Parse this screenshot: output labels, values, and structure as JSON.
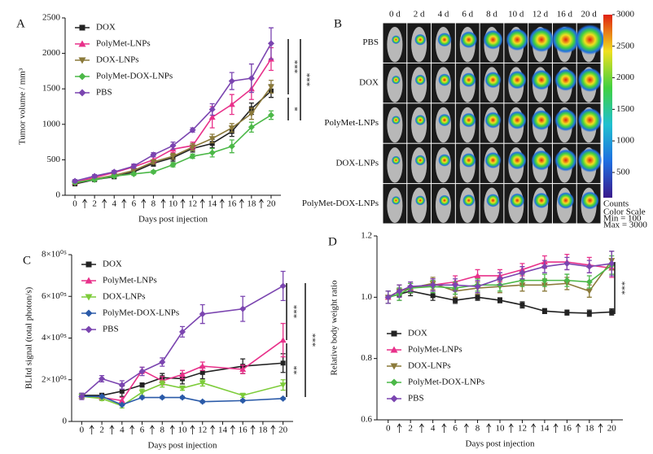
{
  "chart_data": [
    {
      "type": "line",
      "panel": "A",
      "x_label": "Days post injection",
      "y_label": "Tumor volume / mm³",
      "x": [
        0,
        2,
        4,
        6,
        8,
        10,
        12,
        14,
        16,
        18,
        20
      ],
      "xlim": [
        -1,
        21
      ],
      "xticks": [
        0,
        2,
        4,
        6,
        8,
        10,
        12,
        14,
        16,
        18,
        20
      ],
      "ylim": [
        0,
        2500
      ],
      "yticks": [
        0,
        500,
        1000,
        1500,
        2000,
        2500
      ],
      "legend": "upper left",
      "series": [
        {
          "name": "DOX",
          "color": "#222222",
          "marker": "square",
          "values": [
            160,
            220,
            260,
            330,
            450,
            530,
            660,
            730,
            900,
            1220,
            1470
          ],
          "errors": [
            15,
            20,
            20,
            30,
            40,
            50,
            50,
            60,
            70,
            80,
            90
          ]
        },
        {
          "name": "PolyMet-LNPs",
          "color": "#e8318a",
          "marker": "triangle",
          "values": [
            180,
            250,
            320,
            400,
            500,
            650,
            700,
            1100,
            1280,
            1500,
            1920
          ],
          "errors": [
            20,
            20,
            25,
            30,
            40,
            50,
            50,
            150,
            140,
            150,
            160
          ]
        },
        {
          "name": "DOX-LNPs",
          "color": "#8b7a3a",
          "marker": "triangle-down",
          "values": [
            170,
            230,
            280,
            350,
            470,
            550,
            680,
            800,
            950,
            1150,
            1530
          ],
          "errors": [
            15,
            20,
            20,
            30,
            30,
            40,
            50,
            60,
            60,
            80,
            90
          ]
        },
        {
          "name": "PolyMet-DOX-LNPs",
          "color": "#4cb848",
          "marker": "diamond",
          "values": [
            180,
            220,
            270,
            300,
            330,
            430,
            550,
            600,
            690,
            960,
            1130
          ],
          "errors": [
            15,
            15,
            20,
            20,
            20,
            30,
            30,
            60,
            90,
            70,
            60
          ]
        },
        {
          "name": "PBS",
          "color": "#7b45b0",
          "marker": "diamond",
          "values": [
            200,
            270,
            330,
            410,
            570,
            700,
            920,
            1210,
            1610,
            1650,
            2140
          ],
          "errors": [
            20,
            20,
            20,
            30,
            30,
            50,
            30,
            80,
            120,
            200,
            220
          ]
        }
      ],
      "annotations": [
        "***",
        "*",
        "***"
      ]
    },
    {
      "type": "image-grid",
      "panel": "B",
      "columns": [
        "0 d",
        "2 d",
        "4 d",
        "6 d",
        "8 d",
        "10 d",
        "12 d",
        "16 d",
        "20 d"
      ],
      "rows": [
        "PBS",
        "DOX",
        "PolyMet-LNPs",
        "DOX-LNPs",
        "PolyMet-DOX-LNPs"
      ],
      "clim": [
        100,
        3000
      ],
      "cticks": [
        500,
        1000,
        1500,
        2000,
        2500,
        3000
      ],
      "colorbar_label": "Counts",
      "scale_notes": [
        "Color Scale",
        "Min = 100",
        "Max = 3000"
      ]
    },
    {
      "type": "line",
      "panel": "C",
      "x_label": "Days post injection",
      "y_label": "BLItd signal (total photon/s)",
      "x": [
        0,
        2,
        4,
        6,
        8,
        10,
        12,
        16,
        20
      ],
      "xlim": [
        -1,
        21
      ],
      "xticks": [
        0,
        2,
        4,
        6,
        8,
        10,
        12,
        14,
        16,
        18,
        20
      ],
      "ylim": [
        0,
        800000
      ],
      "yticks": [
        0,
        {
          "value": 200000,
          "label": "2×10⁰⁵"
        },
        {
          "value": 400000,
          "label": "4×10⁰⁵"
        },
        {
          "value": 600000,
          "label": "6×10⁰⁵"
        },
        {
          "value": 800000,
          "label": "8×10⁰⁵"
        }
      ],
      "legend": "upper left",
      "series": [
        {
          "name": "DOX",
          "color": "#222222",
          "marker": "square",
          "values": [
            125000,
            125000,
            145000,
            175000,
            210000,
            205000,
            235000,
            265000,
            280000
          ],
          "errors": [
            10000,
            10000,
            25000,
            10000,
            20000,
            25000,
            30000,
            35000,
            45000
          ]
        },
        {
          "name": "PolyMet-LNPs",
          "color": "#e8318a",
          "marker": "triangle",
          "values": [
            120000,
            115000,
            100000,
            245000,
            195000,
            225000,
            265000,
            250000,
            390000
          ],
          "errors": [
            10000,
            10000,
            15000,
            15000,
            20000,
            20000,
            20000,
            20000,
            80000
          ]
        },
        {
          "name": "DOX-LNPs",
          "color": "#7dcc3a",
          "marker": "triangle-down",
          "values": [
            120000,
            110000,
            75000,
            140000,
            180000,
            160000,
            185000,
            125000,
            175000
          ],
          "errors": [
            10000,
            10000,
            10000,
            15000,
            15000,
            10000,
            15000,
            10000,
            25000
          ]
        },
        {
          "name": "PolyMet-DOX-LNPs",
          "color": "#2a5aa8",
          "marker": "diamond",
          "values": [
            120000,
            120000,
            80000,
            115000,
            115000,
            115000,
            95000,
            100000,
            110000
          ],
          "errors": [
            5000,
            5000,
            5000,
            5000,
            5000,
            5000,
            5000,
            5000,
            5000
          ]
        },
        {
          "name": "PBS",
          "color": "#7b45b0",
          "marker": "diamond",
          "values": [
            120000,
            205000,
            175000,
            240000,
            285000,
            430000,
            515000,
            540000,
            650000
          ],
          "errors": [
            15000,
            15000,
            20000,
            20000,
            20000,
            25000,
            45000,
            60000,
            70000
          ]
        }
      ],
      "annotations": [
        "***",
        "**",
        "***"
      ]
    },
    {
      "type": "line",
      "panel": "D",
      "x_label": "Days post injection",
      "y_label": "Relative body weight ratio",
      "x": [
        0,
        1,
        2,
        4,
        6,
        8,
        10,
        12,
        14,
        16,
        18,
        20
      ],
      "xlim": [
        -1,
        21
      ],
      "xticks": [
        0,
        2,
        4,
        6,
        8,
        10,
        12,
        14,
        16,
        18,
        20
      ],
      "ylim": [
        0.6,
        1.2
      ],
      "yticks": [
        0.6,
        0.8,
        {
          "value": 1,
          "label": "1.0"
        },
        1.2
      ],
      "legend": "lower left",
      "series": [
        {
          "name": "DOX",
          "color": "#222222",
          "marker": "square",
          "values": [
            1.0,
            1.01,
            1.02,
            1.005,
            0.99,
            1.0,
            0.99,
            0.975,
            0.955,
            0.95,
            0.948,
            0.952
          ],
          "errors": [
            0.02,
            0.02,
            0.015,
            0.015,
            0.01,
            0.01,
            0.008,
            0.01,
            0.008,
            0.008,
            0.01,
            0.01
          ]
        },
        {
          "name": "PolyMet-LNPs",
          "color": "#e8318a",
          "marker": "triangle",
          "values": [
            1.0,
            1.02,
            1.03,
            1.04,
            1.05,
            1.07,
            1.07,
            1.09,
            1.115,
            1.115,
            1.105,
            1.095
          ],
          "errors": [
            0.02,
            0.02,
            0.015,
            0.02,
            0.02,
            0.02,
            0.02,
            0.02,
            0.02,
            0.025,
            0.025,
            0.03
          ]
        },
        {
          "name": "DOX-LNPs",
          "color": "#8b7a3a",
          "marker": "triangle-down",
          "values": [
            1.0,
            1.02,
            1.03,
            1.045,
            1.02,
            1.03,
            1.035,
            1.04,
            1.04,
            1.045,
            1.02,
            1.12
          ],
          "errors": [
            0.02,
            0.02,
            0.015,
            0.02,
            0.02,
            0.02,
            0.02,
            0.02,
            0.02,
            0.02,
            0.02,
            0.03
          ]
        },
        {
          "name": "PolyMet-DOX-LNPs",
          "color": "#4cb848",
          "marker": "diamond",
          "values": [
            1.0,
            1.01,
            1.03,
            1.035,
            1.03,
            1.04,
            1.04,
            1.055,
            1.055,
            1.055,
            1.05,
            1.105
          ],
          "errors": [
            0.02,
            0.02,
            0.015,
            0.02,
            0.02,
            0.02,
            0.02,
            0.02,
            0.02,
            0.02,
            0.02,
            0.03
          ]
        },
        {
          "name": "PBS",
          "color": "#7b45b0",
          "marker": "diamond",
          "values": [
            1.0,
            1.02,
            1.035,
            1.04,
            1.04,
            1.035,
            1.06,
            1.08,
            1.1,
            1.11,
            1.1,
            1.11
          ],
          "errors": [
            0.02,
            0.02,
            0.015,
            0.02,
            0.02,
            0.02,
            0.02,
            0.02,
            0.02,
            0.02,
            0.02,
            0.04
          ]
        }
      ],
      "annotations": [
        "***"
      ]
    }
  ]
}
